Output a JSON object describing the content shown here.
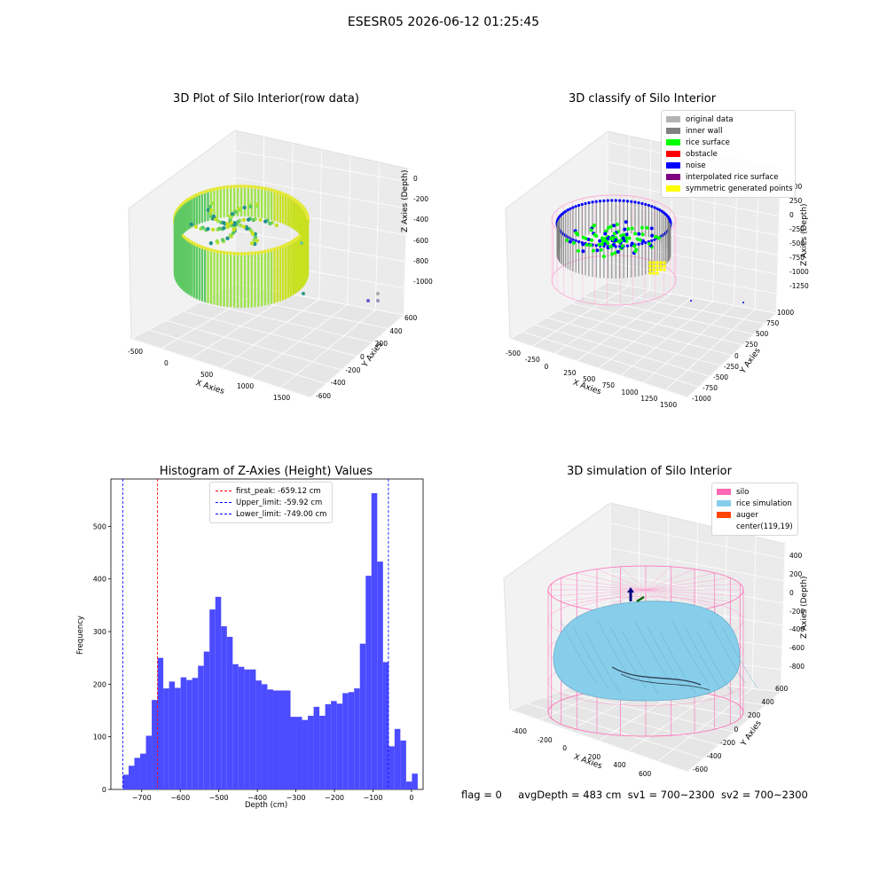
{
  "suptitle": "ESESR05 2026-06-12 01:25:45",
  "panels": {
    "raw": {
      "title": "3D Plot of Silo Interior(row data)",
      "xlabel": "X Axies",
      "ylabel": "Y Axies",
      "zlabel": "Z Axies (Depth)",
      "xticks": [
        "-500",
        "0",
        "500",
        "1000",
        "1500"
      ],
      "yticks": [
        "-600",
        "-400",
        "-200",
        "0",
        "200",
        "400",
        "600"
      ],
      "zticks": [
        "0",
        "-200",
        "-400",
        "-600",
        "-800",
        "-1000"
      ]
    },
    "classify": {
      "title": "3D classify of Silo Interior",
      "xlabel": "X Axies",
      "ylabel": "Y Axies",
      "zlabel": "Z Axies (Depth)",
      "xticks": [
        "-500",
        "-250",
        "0",
        "250",
        "500",
        "750",
        "1000",
        "1250",
        "1500"
      ],
      "yticks": [
        "-1000",
        "-750",
        "-500",
        "-250",
        "0",
        "250",
        "500",
        "750",
        "1000"
      ],
      "zticks": [
        "500",
        "250",
        "0",
        "-250",
        "-500",
        "-750",
        "-1000",
        "-1250"
      ],
      "legend": [
        {
          "label": "original data",
          "color": "#b3b3b3"
        },
        {
          "label": "inner wall",
          "color": "#808080"
        },
        {
          "label": "rice surface",
          "color": "#00ff00"
        },
        {
          "label": "obstacle",
          "color": "#ff0000"
        },
        {
          "label": "noise",
          "color": "#0000ff"
        },
        {
          "label": "interpolated rice surface",
          "color": "#800080"
        },
        {
          "label": "symmetric generated points",
          "color": "#ffff00"
        }
      ]
    },
    "simulation": {
      "title": "3D simulation of Silo Interior",
      "xlabel": "X Axies",
      "ylabel": "Y Axies",
      "zlabel": "Z Axies (Depth)",
      "xticks": [
        "-400",
        "-200",
        "0",
        "200",
        "400",
        "600"
      ],
      "yticks": [
        "-600",
        "-400",
        "-200",
        "0",
        "200",
        "400",
        "600"
      ],
      "zticks": [
        "400",
        "200",
        "0",
        "-200",
        "-400",
        "-600",
        "-800"
      ],
      "legend": [
        {
          "label": "silo",
          "color": "#ff69b4"
        },
        {
          "label": "rice simulation",
          "color": "#87ceeb"
        },
        {
          "label": "auger",
          "color": "#ff4500"
        },
        {
          "label": "center(119,19)",
          "color": "#ffffff"
        }
      ]
    }
  },
  "status": {
    "flag": "flag = 0",
    "avg_depth": "avgDepth = 483 cm",
    "sv1": "sv1 = 700~2300",
    "sv2": "sv2 = 700~2300"
  },
  "chart_data": {
    "type": "bar",
    "title": "Histogram of Z-Axies (Height) Values",
    "xlabel": "Depth (cm)",
    "ylabel": "Frequency",
    "xlim": [
      -780,
      30
    ],
    "ylim": [
      0,
      590
    ],
    "xticks": [
      -700,
      -600,
      -500,
      -400,
      -300,
      -200,
      -100,
      0
    ],
    "yticks": [
      0,
      100,
      200,
      300,
      400,
      500
    ],
    "bin_width": 15,
    "bin_start": -749,
    "values": [
      28,
      45,
      60,
      68,
      102,
      170,
      250,
      192,
      205,
      193,
      213,
      208,
      212,
      235,
      262,
      342,
      366,
      310,
      290,
      238,
      233,
      228,
      228,
      207,
      200,
      190,
      188,
      188,
      188,
      138,
      138,
      132,
      140,
      157,
      140,
      162,
      168,
      163,
      183,
      185,
      192,
      277,
      406,
      563,
      433,
      242,
      82,
      115,
      93,
      15,
      30
    ],
    "lines": [
      {
        "label": "first_peak: -659.12 cm",
        "x": -659.12,
        "color": "#ff0000"
      },
      {
        "label": "Upper_limit: -59.92 cm",
        "x": -59.92,
        "color": "#0000ff"
      },
      {
        "label": "Lower_limit: -749.00 cm",
        "x": -749.0,
        "color": "#0000ff"
      }
    ],
    "bar_color": "#4b4bff"
  }
}
